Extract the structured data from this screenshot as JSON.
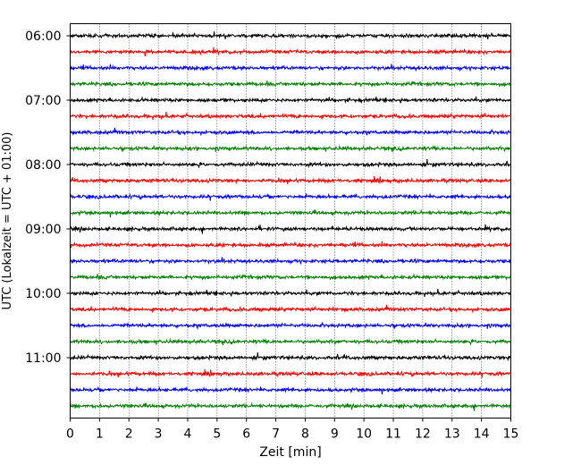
{
  "chart_data": {
    "type": "line",
    "title": "",
    "xlabel": "Zeit  [min]",
    "ylabel": "UTC (Lokalzeit = UTC + 01:00)",
    "xlim": [
      0,
      15
    ],
    "x_ticks": [
      "0",
      "1",
      "2",
      "3",
      "4",
      "5",
      "6",
      "7",
      "8",
      "9",
      "10",
      "11",
      "12",
      "13",
      "14",
      "15"
    ],
    "y_ticks": [
      "06:00",
      "07:00",
      "08:00",
      "09:00",
      "10:00",
      "11:00"
    ],
    "grid": "vertical dotted at each minute",
    "legend": "none",
    "trace_interval_minutes": 15,
    "trace_start": "06:00",
    "trace_count": 24,
    "trace_colors": [
      "#000000",
      "#ff0000",
      "#0000ff",
      "#008000"
    ],
    "signal": "low-amplitude seismic noise on every trace"
  }
}
